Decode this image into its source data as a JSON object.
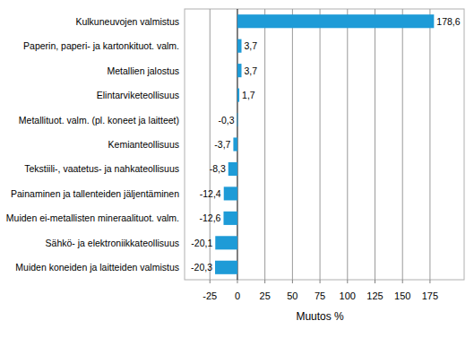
{
  "chart_data": {
    "type": "bar",
    "orientation": "horizontal",
    "categories": [
      "Kulkuneuvojen valmistus",
      "Paperin, paperi- ja kartonkituot. valm.",
      "Metallien jalostus",
      "Elintarviketeollisuus",
      "Metallituot. valm. (pl. koneet ja laitteet)",
      "Kemianteollisuus",
      "Tekstiili-, vaatetus- ja nahkateollisuus",
      "Painaminen ja tallenteiden jäljentäminen",
      "Muiden ei-metallisten mineraalituot. valm.",
      "Sähkö- ja elektroniikkateollisuus",
      "Muiden koneiden ja laitteiden valmistus"
    ],
    "values": [
      178.6,
      3.7,
      3.7,
      1.7,
      -0.3,
      -3.7,
      -8.3,
      -12.4,
      -12.6,
      -20.1,
      -20.3
    ],
    "value_labels": [
      "178,6",
      "3,7",
      "3,7",
      "1,7",
      "-0,3",
      "-3,7",
      "-8,3",
      "-12,4",
      "-12,6",
      "-20,1",
      "-20,3"
    ],
    "data_labels": true,
    "color": "#1e9bd7",
    "x_label": "Muutos %",
    "xlim": [
      -48,
      206
    ],
    "xticks": [
      -25,
      0,
      25,
      50,
      75,
      100,
      125,
      150,
      175
    ],
    "grid": true
  }
}
